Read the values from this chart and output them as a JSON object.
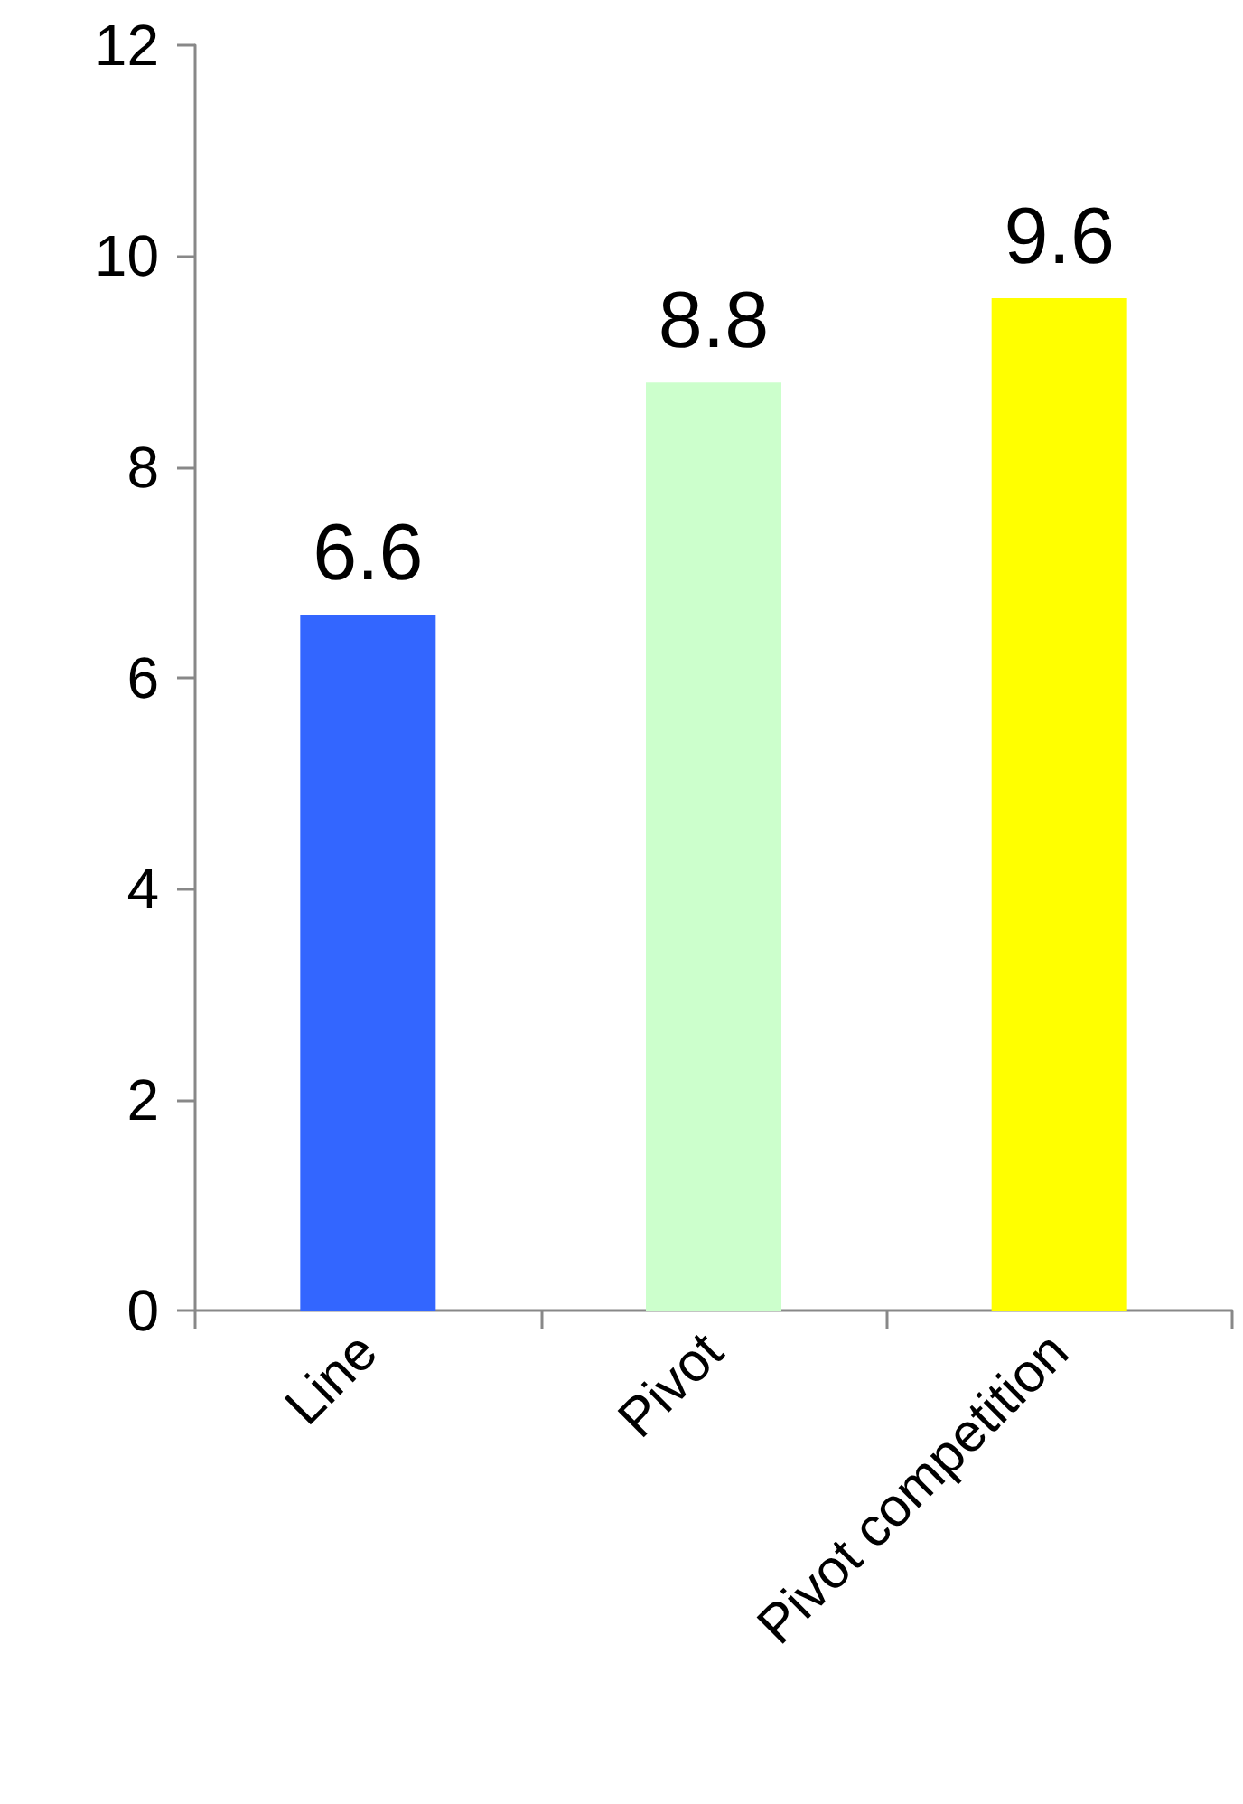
{
  "chart_data": {
    "type": "bar",
    "categories": [
      "Line",
      "Pivot",
      "Pivot competition"
    ],
    "values": [
      6.6,
      8.8,
      9.6
    ],
    "colors": [
      "#3366ff",
      "#ccffcc",
      "#ffff00"
    ],
    "ylim": [
      0,
      12
    ],
    "yticks": [
      0,
      2,
      4,
      6,
      8,
      10,
      12
    ],
    "data_labels": true
  }
}
